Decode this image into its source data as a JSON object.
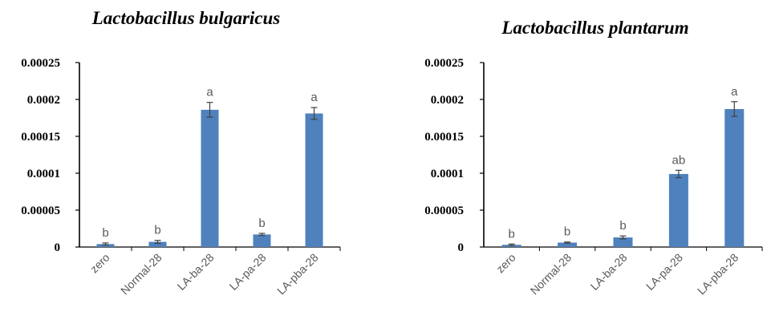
{
  "chart_data": [
    {
      "type": "bar",
      "title": "Lactobacillus bulgaricus",
      "xlabel": "",
      "ylabel": "",
      "categories": [
        "zero",
        "Normal-28",
        "LA-ba-28",
        "LA-pa-28",
        "LA-pba-28"
      ],
      "values": [
        4e-06,
        7e-06,
        0.000186,
        1.7e-05,
        0.000181
      ],
      "errors": [
        1.5e-06,
        2e-06,
        1e-05,
        1.5e-06,
        8e-06
      ],
      "significance": [
        "b",
        "b",
        "a",
        "b",
        "a"
      ],
      "ylim": [
        0,
        0.00025
      ],
      "yticks": [
        "0",
        "0.00005",
        "0.0001",
        "0.00015",
        "0.0002",
        "0.00025"
      ],
      "grid": false,
      "bar_color": "#4f81bd"
    },
    {
      "type": "bar",
      "title": "Lactobacillus plantarum",
      "xlabel": "",
      "ylabel": "",
      "categories": [
        "zero",
        "Normal-28",
        "LA-ba-28",
        "LA-pa-28",
        "LA-pba-28"
      ],
      "values": [
        3e-06,
        6e-06,
        1.3e-05,
        9.9e-05,
        0.000187
      ],
      "errors": [
        1e-06,
        8e-07,
        2e-06,
        5e-06,
        1e-05
      ],
      "significance": [
        "b",
        "b",
        "b",
        "ab",
        "a"
      ],
      "ylim": [
        0,
        0.00025
      ],
      "yticks": [
        "0",
        "0.00005",
        "0.0001",
        "0.00015",
        "0.0002",
        "0.00025"
      ],
      "grid": false,
      "bar_color": "#4f81bd"
    }
  ]
}
